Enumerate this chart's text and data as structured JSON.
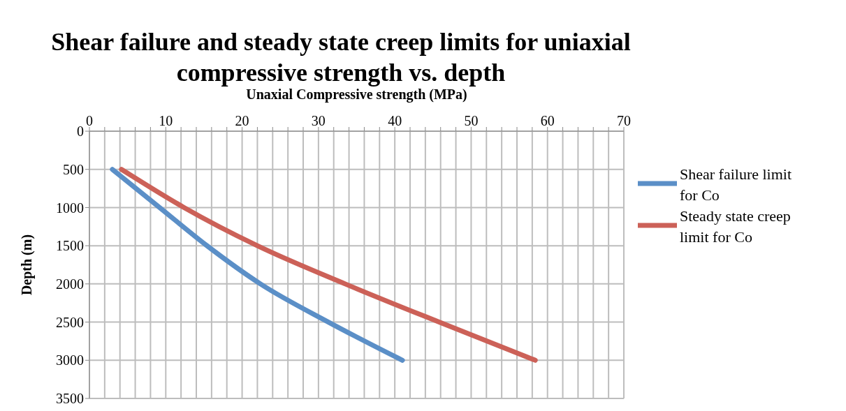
{
  "chart_data": {
    "type": "line",
    "title": "Shear failure and steady state creep limits for uniaxial compressive strength vs. depth",
    "xlabel": "Unaxial Compressive strength (MPa)",
    "ylabel": "Depth (m)",
    "series": [
      {
        "name": "Shear failure limit for Co",
        "color": "#5b8fc7",
        "x": [
          3,
          9.2,
          15.4,
          22.4,
          31.3,
          41
        ],
        "values": [
          500,
          1000,
          1500,
          2000,
          2500,
          3000
        ]
      },
      {
        "name": "Steady state creep limit for Co",
        "color": "#cc6158",
        "x": [
          4.2,
          12.4,
          22,
          33.5,
          45.8,
          58.4
        ],
        "values": [
          500,
          1000,
          1500,
          2000,
          2500,
          3000
        ]
      }
    ],
    "xlim": [
      0,
      70
    ],
    "xticks": [
      0,
      {
        "value": 2,
        "label": null
      },
      {
        "value": 4,
        "label": null
      },
      {
        "value": 6,
        "label": null
      },
      {
        "value": 8,
        "label": null
      },
      10,
      {
        "value": 12,
        "label": null
      },
      {
        "value": 14,
        "label": null
      },
      {
        "value": 16,
        "label": null
      },
      {
        "value": 18,
        "label": null
      },
      20,
      {
        "value": 22,
        "label": null
      },
      {
        "value": 24,
        "label": null
      },
      {
        "value": 26,
        "label": null
      },
      {
        "value": 28,
        "label": null
      },
      30,
      {
        "value": 32,
        "label": null
      },
      {
        "value": 34,
        "label": null
      },
      {
        "value": 36,
        "label": null
      },
      {
        "value": 38,
        "label": null
      },
      40,
      {
        "value": 42,
        "label": null
      },
      {
        "value": 44,
        "label": null
      },
      {
        "value": 46,
        "label": null
      },
      {
        "value": 48,
        "label": null
      },
      50,
      {
        "value": 52,
        "label": null
      },
      {
        "value": 54,
        "label": null
      },
      {
        "value": 56,
        "label": null
      },
      {
        "value": 58,
        "label": null
      },
      60,
      {
        "value": 62,
        "label": null
      },
      {
        "value": 64,
        "label": null
      },
      {
        "value": 66,
        "label": null
      },
      {
        "value": 68,
        "label": null
      },
      70
    ],
    "ylim": [
      3500,
      0
    ],
    "yticks": [
      0,
      500,
      1000,
      1500,
      2000,
      2500,
      3000,
      3500
    ],
    "grid": true,
    "legend": "right",
    "marker": "none",
    "line_style": "solid"
  }
}
